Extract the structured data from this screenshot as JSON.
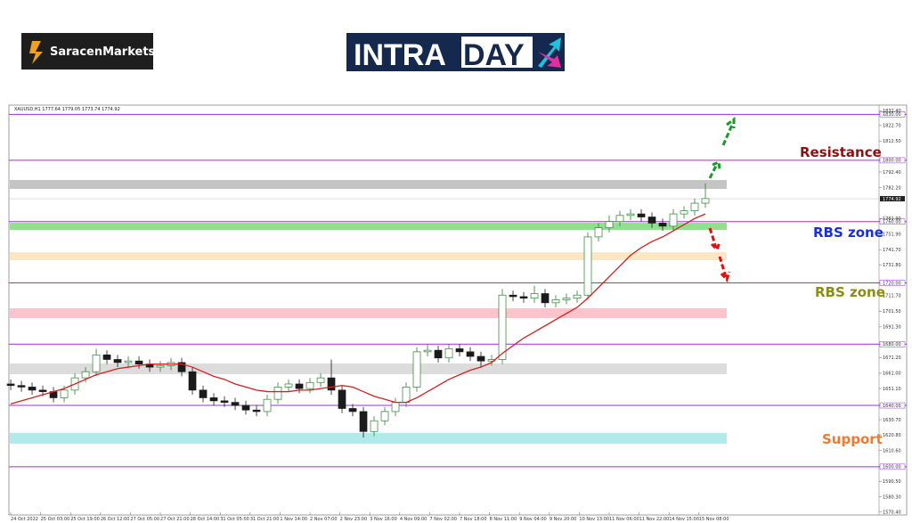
{
  "brand": "SaracenMarkets",
  "banner": {
    "left": "INTRA",
    "right": "DAY"
  },
  "chart_data": {
    "type": "candlestick",
    "symbol_header": "XAUUSD,H1 1777.64 1779.05 1773.74 1774.92",
    "current_price": {
      "value": 1774.92,
      "label": "1774.92"
    },
    "xlim": [
      -0.17,
      81.25
    ],
    "ylim": [
      1568.5,
      1836
    ],
    "xticks": [
      {
        "value": 0,
        "label": "24 Oct 2022"
      },
      {
        "value": 2.8,
        "label": "25 Oct 03:00"
      },
      {
        "value": 5.6,
        "label": "25 Oct 19:00"
      },
      {
        "value": 8.4,
        "label": "26 Oct 12:00"
      },
      {
        "value": 11.2,
        "label": "27 Oct 05:00"
      },
      {
        "value": 14,
        "label": "27 Oct 21:00"
      },
      {
        "value": 16.8,
        "label": "28 Oct 14:00"
      },
      {
        "value": 19.6,
        "label": "31 Oct 05:00"
      },
      {
        "value": 22.4,
        "label": "31 Oct 21:00"
      },
      {
        "value": 25.2,
        "label": "1 Nov 14:00"
      },
      {
        "value": 28,
        "label": "2 Nov 07:00"
      },
      {
        "value": 30.8,
        "label": "2 Nov 23:00"
      },
      {
        "value": 33.6,
        "label": "3 Nov 16:00"
      },
      {
        "value": 36.4,
        "label": "4 Nov 09:00"
      },
      {
        "value": 39.2,
        "label": "7 Nov 02:00"
      },
      {
        "value": 42,
        "label": "7 Nov 18:00"
      },
      {
        "value": 44.8,
        "label": "8 Nov 11:00"
      },
      {
        "value": 47.6,
        "label": "9 Nov 04:00"
      },
      {
        "value": 50.4,
        "label": "9 Nov 20:00"
      },
      {
        "value": 53.2,
        "label": "10 Nov 13:00"
      },
      {
        "value": 56,
        "label": "11 Nov 06:00"
      },
      {
        "value": 58.8,
        "label": "11 Nov 22:00"
      },
      {
        "value": 61.6,
        "label": "14 Nov 15:00"
      },
      {
        "value": 64.4,
        "label": "15 Nov 08:00"
      }
    ],
    "yticks": [
      {
        "value": 1832.4,
        "label": "1832.40"
      },
      {
        "value": 1822.7,
        "label": "1822.70"
      },
      {
        "value": 1812.5,
        "label": "1812.50"
      },
      {
        "value": 1792.4,
        "label": "1792.40"
      },
      {
        "value": 1782.2,
        "label": "1782.20"
      },
      {
        "value": 1761.9,
        "label": "1761.90"
      },
      {
        "value": 1751.9,
        "label": "1751.90"
      },
      {
        "value": 1741.7,
        "label": "1741.70"
      },
      {
        "value": 1731.8,
        "label": "1731.80"
      },
      {
        "value": 1711.7,
        "label": "1711.70"
      },
      {
        "value": 1701.5,
        "label": "1701.50"
      },
      {
        "value": 1691.3,
        "label": "1691.30"
      },
      {
        "value": 1671.2,
        "label": "1671.20"
      },
      {
        "value": 1661,
        "label": "1661.00"
      },
      {
        "value": 1651.1,
        "label": "1651.10"
      },
      {
        "value": 1630.7,
        "label": "1630.70"
      },
      {
        "value": 1620.8,
        "label": "1620.80"
      },
      {
        "value": 1610.6,
        "label": "1610.60"
      },
      {
        "value": 1590.5,
        "label": "1590.50"
      },
      {
        "value": 1580.3,
        "label": "1580.30"
      },
      {
        "value": 1570.4,
        "label": "1570.40"
      }
    ],
    "levels": [
      {
        "value": 1830,
        "label": "1830.00"
      },
      {
        "value": 1800,
        "label": "1800.00"
      },
      {
        "value": 1760,
        "label": "1760.00"
      },
      {
        "value": 1720,
        "label": "1720.00"
      },
      {
        "value": 1680,
        "label": "1680.00"
      },
      {
        "value": 1640,
        "label": "1640.00"
      },
      {
        "value": 1600,
        "label": "1600.00"
      }
    ],
    "level_color": "#9b30d9",
    "zones": [
      {
        "low": 1781.3,
        "high": 1787.1,
        "color": "#c4c4c4"
      },
      {
        "low": 1754.5,
        "high": 1759.2,
        "color": "#8fe08f"
      },
      {
        "low": 1734.8,
        "high": 1740,
        "color": "#fde6c4"
      },
      {
        "low": 1697,
        "high": 1703.4,
        "color": "#fbc4cc"
      },
      {
        "low": 1660.4,
        "high": 1667.4,
        "color": "#dcdcdc"
      },
      {
        "low": 1615.1,
        "high": 1622.1,
        "color": "#b0eaea"
      }
    ],
    "annotations": [
      {
        "text": "Resistance",
        "color": "#8b1010"
      },
      {
        "text": "RBS zone",
        "color": "#1a2ee0"
      },
      {
        "text": "RBS zone",
        "color": "#8c8c10"
      },
      {
        "text": "Support",
        "color": "#f07a30"
      }
    ],
    "candle_colors": {
      "up": "#2e7d32",
      "down": "#1b1b1b"
    },
    "ma_color": "#d42020",
    "open": [
      1654,
      1653,
      1652,
      1650,
      1649,
      1645,
      1650,
      1658,
      1662,
      1673,
      1670,
      1668,
      1669,
      1667,
      1665,
      1666,
      1668,
      1662,
      1650,
      1645,
      1643,
      1642,
      1640,
      1637,
      1636,
      1644,
      1652,
      1654,
      1651,
      1655,
      1658,
      1650,
      1638,
      1636,
      1623,
      1630,
      1636,
      1642,
      1652,
      1675,
      1676,
      1671,
      1677,
      1675,
      1672,
      1669,
      1670,
      1712,
      1711,
      1710,
      1713,
      1707,
      1709,
      1710,
      1712,
      1750,
      1756,
      1760,
      1764,
      1765,
      1763,
      1759,
      1757,
      1765,
      1767,
      1772
    ],
    "high": [
      1657,
      1656,
      1655,
      1653,
      1652,
      1653,
      1661,
      1665,
      1677,
      1676,
      1673,
      1672,
      1672,
      1670,
      1669,
      1671,
      1671,
      1665,
      1653,
      1648,
      1646,
      1645,
      1643,
      1640,
      1647,
      1655,
      1657,
      1657,
      1658,
      1661,
      1670,
      1653,
      1641,
      1639,
      1633,
      1639,
      1645,
      1655,
      1678,
      1680,
      1679,
      1680,
      1680,
      1678,
      1675,
      1673,
      1716,
      1715,
      1714,
      1718,
      1716,
      1712,
      1713,
      1715,
      1753,
      1759,
      1764,
      1767,
      1768,
      1768,
      1766,
      1762,
      1768,
      1770,
      1775,
      1785
    ],
    "low": [
      1650,
      1649,
      1647,
      1646,
      1642,
      1642,
      1647,
      1655,
      1659,
      1667,
      1665,
      1665,
      1664,
      1662,
      1662,
      1663,
      1659,
      1647,
      1642,
      1640,
      1639,
      1637,
      1634,
      1633,
      1633,
      1641,
      1649,
      1648,
      1648,
      1652,
      1647,
      1635,
      1633,
      1619,
      1620,
      1627,
      1633,
      1639,
      1649,
      1672,
      1668,
      1668,
      1672,
      1669,
      1665,
      1666,
      1667,
      1708,
      1707,
      1707,
      1704,
      1704,
      1706,
      1707,
      1709,
      1747,
      1753,
      1757,
      1761,
      1760,
      1756,
      1754,
      1754,
      1762,
      1764,
      1769
    ],
    "close": [
      1653,
      1652,
      1650,
      1649,
      1645,
      1650,
      1658,
      1662,
      1673,
      1670,
      1668,
      1669,
      1667,
      1665,
      1666,
      1668,
      1662,
      1650,
      1645,
      1643,
      1642,
      1640,
      1637,
      1636,
      1644,
      1652,
      1654,
      1651,
      1655,
      1658,
      1650,
      1638,
      1636,
      1623,
      1630,
      1636,
      1642,
      1652,
      1675,
      1676,
      1671,
      1677,
      1675,
      1672,
      1669,
      1670,
      1712,
      1711,
      1710,
      1713,
      1707,
      1709,
      1710,
      1712,
      1750,
      1756,
      1760,
      1764,
      1765,
      1763,
      1759,
      1757,
      1765,
      1767,
      1772,
      1775
    ],
    "ma": [
      1641,
      1643,
      1645,
      1647,
      1649,
      1651,
      1654,
      1657,
      1660,
      1662,
      1664,
      1665,
      1666,
      1667,
      1667,
      1667,
      1667,
      1665,
      1662,
      1659,
      1657,
      1654,
      1652,
      1650,
      1649,
      1649,
      1649,
      1650,
      1650,
      1651,
      1652,
      1653,
      1652,
      1649,
      1646,
      1644,
      1642,
      1642,
      1645,
      1649,
      1653,
      1657,
      1660,
      1663,
      1665,
      1668,
      1674,
      1679,
      1684,
      1688,
      1692,
      1696,
      1700,
      1704,
      1710,
      1717,
      1724,
      1731,
      1738,
      1743,
      1747,
      1750,
      1754,
      1758,
      1762,
      1765
    ]
  }
}
